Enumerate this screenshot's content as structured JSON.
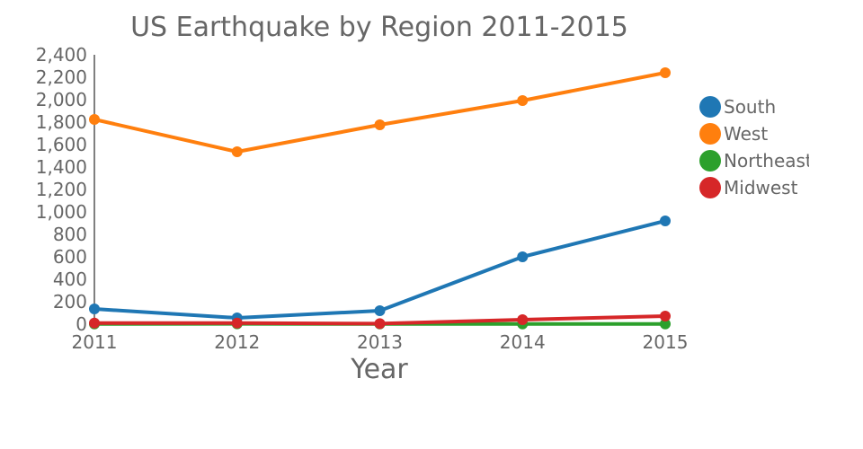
{
  "chart_data": {
    "type": "line",
    "title": "US Earthquake by Region 2011-2015",
    "xlabel": "Year",
    "ylabel": "",
    "x": [
      2011,
      2012,
      2013,
      2014,
      2015
    ],
    "x_tick_labels": [
      "2011",
      "2012",
      "2013",
      "2014",
      "2015"
    ],
    "ylim": [
      0,
      2400
    ],
    "y_ticks": [
      0,
      200,
      400,
      600,
      800,
      1000,
      1200,
      1400,
      1600,
      1800,
      2000,
      2200,
      2400
    ],
    "y_tick_labels": [
      "0",
      "200",
      "400",
      "600",
      "800",
      "1,000",
      "1,200",
      "1,400",
      "1,600",
      "1,800",
      "2,000",
      "2,200",
      "2,400"
    ],
    "grid": false,
    "legend_position": "right",
    "series": [
      {
        "name": "South",
        "color": "#1f77b4",
        "values": [
          136,
          56,
          120,
          600,
          920
        ]
      },
      {
        "name": "West",
        "color": "#ff7f0e",
        "values": [
          1824,
          1536,
          1776,
          1992,
          2240
        ]
      },
      {
        "name": "Northeast",
        "color": "#2ca02c",
        "values": [
          2,
          3,
          2,
          2,
          2
        ]
      },
      {
        "name": "Midwest",
        "color": "#d62728",
        "values": [
          10,
          10,
          5,
          40,
          72
        ]
      }
    ]
  }
}
